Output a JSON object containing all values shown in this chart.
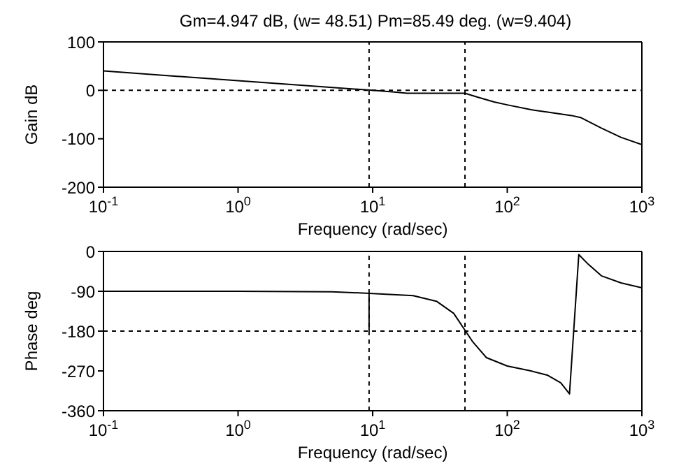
{
  "chart_data": [
    {
      "type": "line",
      "title": "Gm=4.947 dB, (w= 48.51)   Pm=85.49 deg. (w=9.404)",
      "xlabel": "Frequency (rad/sec)",
      "ylabel": "Gain dB",
      "log": "x",
      "xlim": [
        0.1,
        1000
      ],
      "xticks": [
        {
          "value": 0.1,
          "label": "10$^{-1}$"
        },
        {
          "value": 1,
          "label": "10$^{0}$"
        },
        {
          "value": 10,
          "label": "10$^{1}$"
        },
        {
          "value": 100,
          "label": "10$^{2}$"
        },
        {
          "value": 1000,
          "label": "10$^{3}$"
        }
      ],
      "ylim": [
        -200,
        100
      ],
      "yticks": [
        -200,
        -100,
        0,
        100
      ],
      "series": [
        {
          "color": "#000000",
          "x": [
            0.1,
            1,
            10,
            15,
            18,
            48.5,
            60,
            80,
            100,
            150,
            200,
            300,
            350,
            500,
            700,
            1000
          ],
          "values": [
            40,
            20,
            0,
            -4,
            -6,
            -6,
            -14,
            -24,
            -30,
            -40,
            -45,
            -52,
            -56,
            -78,
            -97,
            -112
          ]
        }
      ],
      "ref_lines": [
        {
          "axis": "y",
          "value": 0,
          "line_style": "dashed",
          "color": "#000000"
        },
        {
          "axis": "x",
          "value": 9.404,
          "line_style": "dashed",
          "color": "#000000"
        },
        {
          "axis": "x",
          "value": 48.51,
          "line_style": "dashed",
          "color": "#000000"
        }
      ]
    },
    {
      "type": "line",
      "xlabel": "Frequency (rad/sec)",
      "ylabel": "Phase deg",
      "log": "x",
      "xlim": [
        0.1,
        1000
      ],
      "xticks": [
        {
          "value": 0.1,
          "label": "10$^{-1}$"
        },
        {
          "value": 1,
          "label": "10$^{0}$"
        },
        {
          "value": 10,
          "label": "10$^{1}$"
        },
        {
          "value": 100,
          "label": "10$^{2}$"
        },
        {
          "value": 1000,
          "label": "10$^{3}$"
        }
      ],
      "ylim": [
        -360,
        0
      ],
      "yticks": [
        -360,
        -270,
        -180,
        -90,
        0
      ],
      "series": [
        {
          "color": "#000000",
          "x": [
            0.1,
            1,
            5,
            10,
            20,
            30,
            40,
            48.5,
            55,
            70,
            100,
            150,
            200,
            250,
            290,
            340,
            400,
            500,
            700,
            1000
          ],
          "values": [
            -90,
            -90,
            -91,
            -95,
            -100,
            -113,
            -140,
            -178,
            -203,
            -240,
            -259,
            -270,
            -280,
            -297,
            -322,
            -7,
            -29,
            -55,
            -71,
            -82
          ]
        },
        {
          "color": "#000000",
          "x": [
            9.404,
            9.404
          ],
          "values": [
            -180,
            -95
          ]
        }
      ],
      "ref_lines": [
        {
          "axis": "y",
          "value": -180,
          "line_style": "dashed",
          "color": "#000000"
        },
        {
          "axis": "x",
          "value": 9.404,
          "line_style": "dashed",
          "color": "#000000"
        },
        {
          "axis": "x",
          "value": 48.51,
          "line_style": "dashed",
          "color": "#000000"
        }
      ]
    }
  ]
}
